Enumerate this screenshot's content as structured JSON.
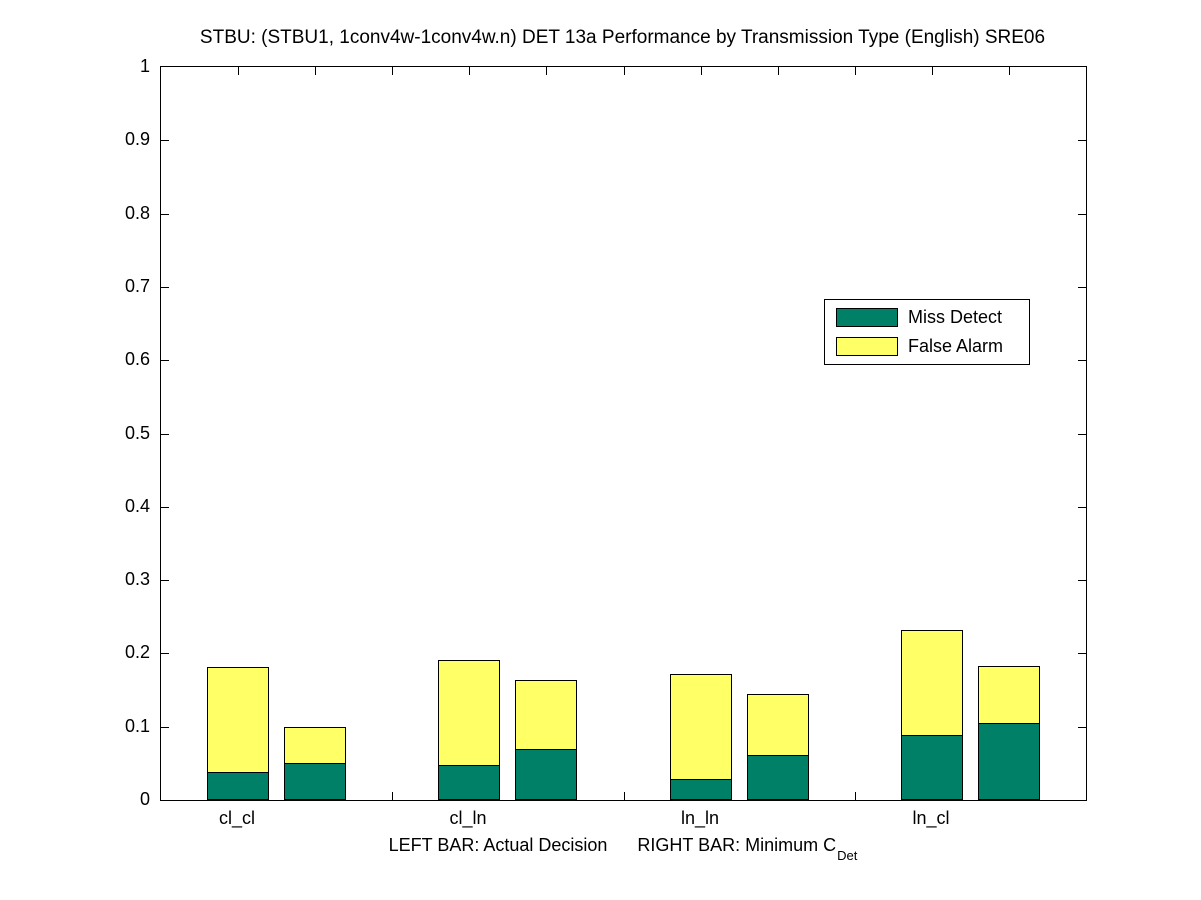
{
  "title": "STBU: (STBU1, 1conv4w-1conv4w.n) DET 13a Performance by Transmission Type (English) SRE06",
  "legend": {
    "items": [
      {
        "label": "Miss Detect",
        "color": "#008066"
      },
      {
        "label": "False Alarm",
        "color": "#ffff66"
      }
    ]
  },
  "xlabel": {
    "left_part": "LEFT BAR: Actual Decision",
    "right_part": "RIGHT BAR: Minimum C",
    "subscript": "Det"
  },
  "chart_data": {
    "type": "bar",
    "stacked": true,
    "orientation": "vertical",
    "title": "STBU: (STBU1, 1conv4w-1conv4w.n) DET 13a Performance by Transmission Type (English) SRE06",
    "categories": [
      "cl_cl",
      "cl_ln",
      "ln_ln",
      "ln_cl"
    ],
    "series": [
      {
        "name": "LEFT BAR: Actual Decision",
        "segments": [
          {
            "label": "Miss Detect",
            "values": [
              0.038,
              0.048,
              0.029,
              0.089
            ]
          },
          {
            "label": "False Alarm",
            "values": [
              0.144,
              0.145,
              0.145,
              0.145
            ]
          }
        ],
        "totals": [
          0.182,
          0.193,
          0.174,
          0.234
        ]
      },
      {
        "name": "RIGHT BAR: Minimum C_Det",
        "segments": [
          {
            "label": "Miss Detect",
            "values": [
              0.051,
              0.07,
              0.061,
              0.105
            ]
          },
          {
            "label": "False Alarm",
            "values": [
              0.05,
              0.095,
              0.084,
              0.079
            ]
          }
        ],
        "totals": [
          0.101,
          0.165,
          0.145,
          0.184
        ]
      }
    ],
    "ylim": [
      0,
      1
    ],
    "yticks": [
      0,
      0.1,
      0.2,
      0.3,
      0.4,
      0.5,
      0.6,
      0.7,
      0.8,
      0.9,
      1
    ],
    "ytick_labels": [
      "0",
      "0.1",
      "0.2",
      "0.3",
      "0.4",
      "0.5",
      "0.6",
      "0.7",
      "0.8",
      "0.9",
      "1"
    ],
    "xlabel": "LEFT BAR: Actual Decision    RIGHT BAR: Minimum C_Det",
    "grid": false,
    "legend_position": "inside-upper-right",
    "colors": {
      "Miss Detect": "#008066",
      "False Alarm": "#ffff66"
    }
  }
}
